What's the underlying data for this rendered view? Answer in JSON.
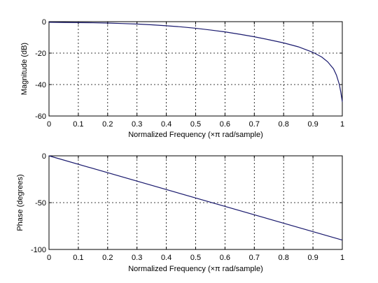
{
  "chart_data": [
    {
      "type": "line",
      "xlabel": "Normalized Frequency  (×π rad/sample)",
      "ylabel": "Magnitude (dB)",
      "xlim": [
        0,
        1
      ],
      "ylim": [
        -60,
        0
      ],
      "xticks": [
        "0",
        "0.1",
        "0.2",
        "0.3",
        "0.4",
        "0.5",
        "0.6",
        "0.7",
        "0.8",
        "0.9",
        "1"
      ],
      "yticks": [
        "0",
        "-20",
        "-40",
        "-60"
      ],
      "grid": true,
      "line_color": "#1a1a6e",
      "series": [
        {
          "x": [
            0,
            0.05,
            0.1,
            0.15,
            0.2,
            0.25,
            0.3,
            0.35,
            0.4,
            0.45,
            0.5,
            0.55,
            0.6,
            0.65,
            0.7,
            0.75,
            0.8,
            0.85,
            0.9,
            0.93,
            0.95,
            0.97,
            0.98,
            0.99,
            0.995,
            1.0
          ],
          "y": [
            -0.4,
            -0.5,
            -0.6,
            -0.7,
            -0.9,
            -1.2,
            -1.5,
            -2.0,
            -2.6,
            -3.3,
            -4.2,
            -5.3,
            -6.5,
            -8.0,
            -9.6,
            -11.5,
            -13.5,
            -16.0,
            -19.5,
            -22.5,
            -25.5,
            -30,
            -34,
            -40,
            -45,
            -51
          ]
        }
      ]
    },
    {
      "type": "line",
      "xlabel": "Normalized Frequency  (×π rad/sample)",
      "ylabel": "Phase (degrees)",
      "xlim": [
        0,
        1
      ],
      "ylim": [
        -100,
        0
      ],
      "xticks": [
        "0",
        "0.1",
        "0.2",
        "0.3",
        "0.4",
        "0.5",
        "0.6",
        "0.7",
        "0.8",
        "0.9",
        "1"
      ],
      "yticks": [
        "0",
        "-50",
        "-100"
      ],
      "grid": true,
      "line_color": "#1a1a6e",
      "series": [
        {
          "x": [
            0,
            1
          ],
          "y": [
            0,
            -90
          ]
        }
      ]
    }
  ]
}
